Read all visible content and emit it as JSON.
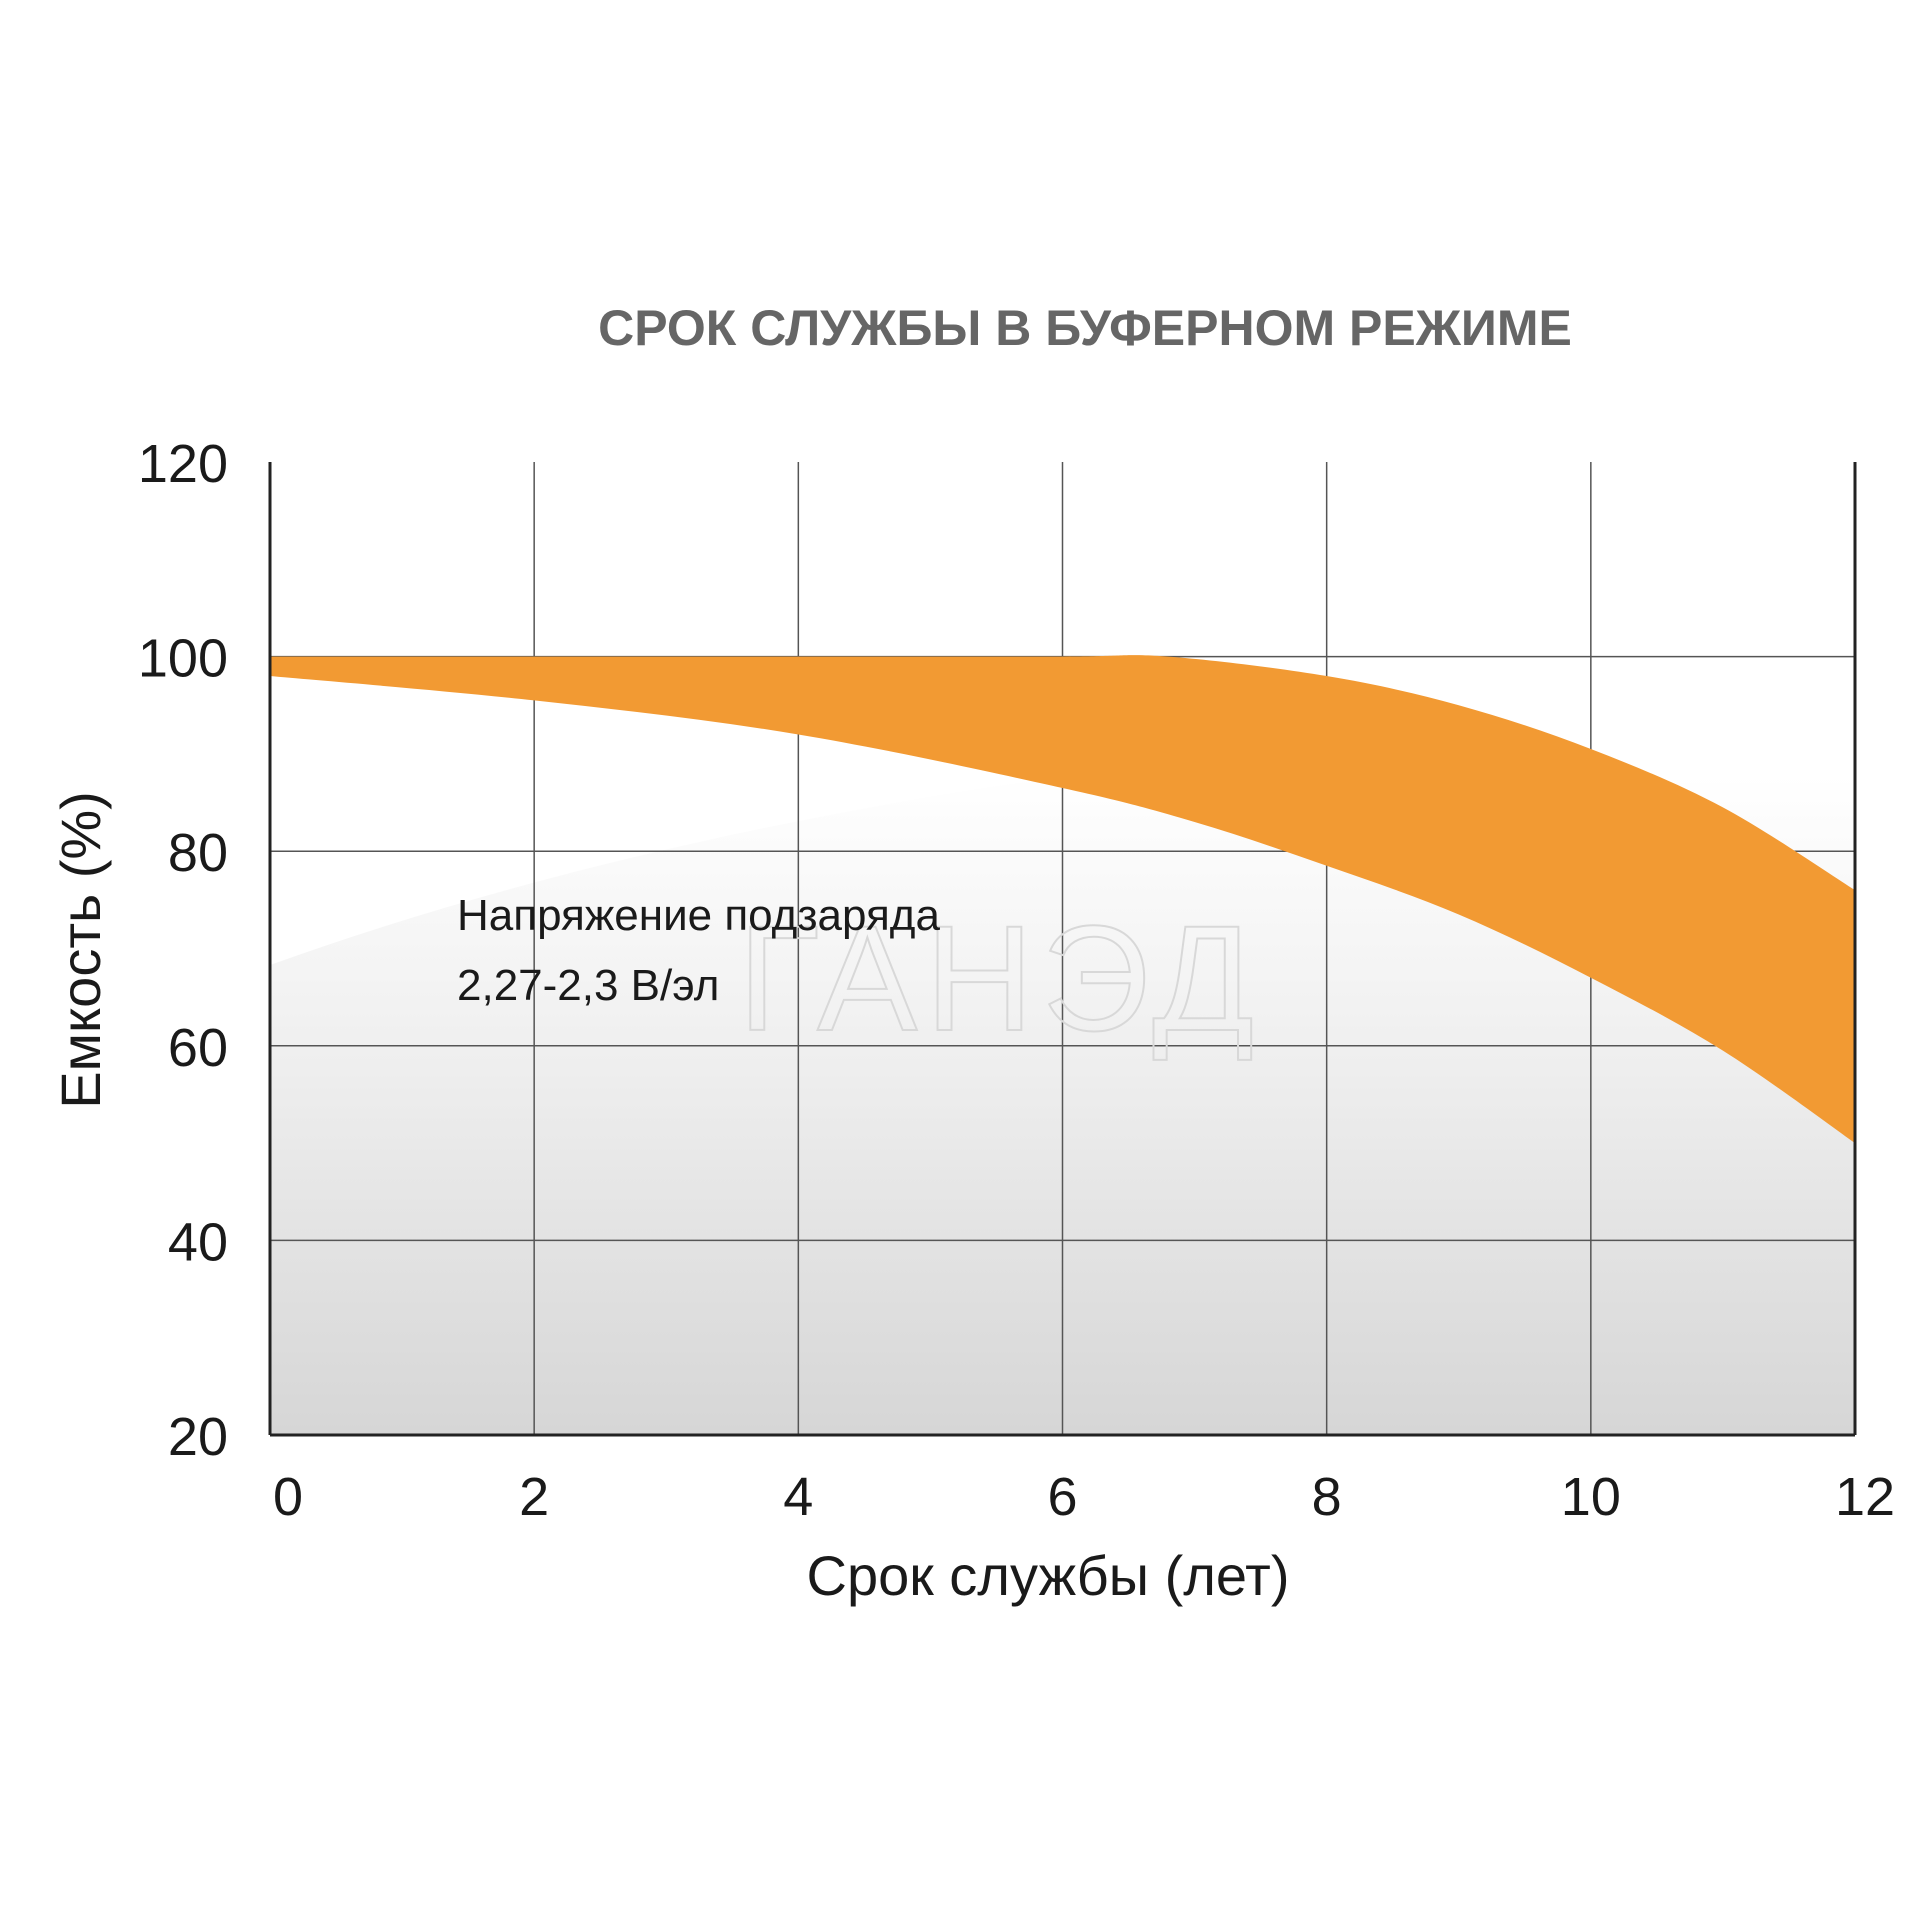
{
  "chart_data": {
    "type": "area",
    "title": "СРОК СЛУЖБЫ В БУФЕРНОМ РЕЖИМЕ",
    "xlabel": "Срок службы (лет)",
    "ylabel": "Емкость (%)",
    "xlim": [
      0,
      12
    ],
    "ylim": [
      20,
      120
    ],
    "x_ticks": [
      "0",
      "2",
      "4",
      "6",
      "8",
      "10",
      "12"
    ],
    "y_ticks": [
      "120",
      "100",
      "80",
      "60",
      "40",
      "20"
    ],
    "grid": true,
    "band": {
      "color": "#f29a33",
      "upper": [
        {
          "x": 0,
          "y": 100
        },
        {
          "x": 2,
          "y": 100
        },
        {
          "x": 4,
          "y": 100
        },
        {
          "x": 6,
          "y": 100
        },
        {
          "x": 6.8,
          "y": 100
        },
        {
          "x": 8,
          "y": 98
        },
        {
          "x": 9,
          "y": 95
        },
        {
          "x": 10,
          "y": 90.5
        },
        {
          "x": 11,
          "y": 84.5
        },
        {
          "x": 12,
          "y": 76
        }
      ],
      "lower": [
        {
          "x": 0,
          "y": 98
        },
        {
          "x": 2,
          "y": 95.5
        },
        {
          "x": 4,
          "y": 92
        },
        {
          "x": 6,
          "y": 86.5
        },
        {
          "x": 7,
          "y": 83
        },
        {
          "x": 8,
          "y": 78.5
        },
        {
          "x": 9,
          "y": 73.5
        },
        {
          "x": 10,
          "y": 67
        },
        {
          "x": 11,
          "y": 59.5
        },
        {
          "x": 12,
          "y": 50
        }
      ]
    },
    "annotations": [
      "Напряжение подзаряда",
      "2,27-2,3 В/эл"
    ],
    "watermark": "ГАНЭД"
  }
}
